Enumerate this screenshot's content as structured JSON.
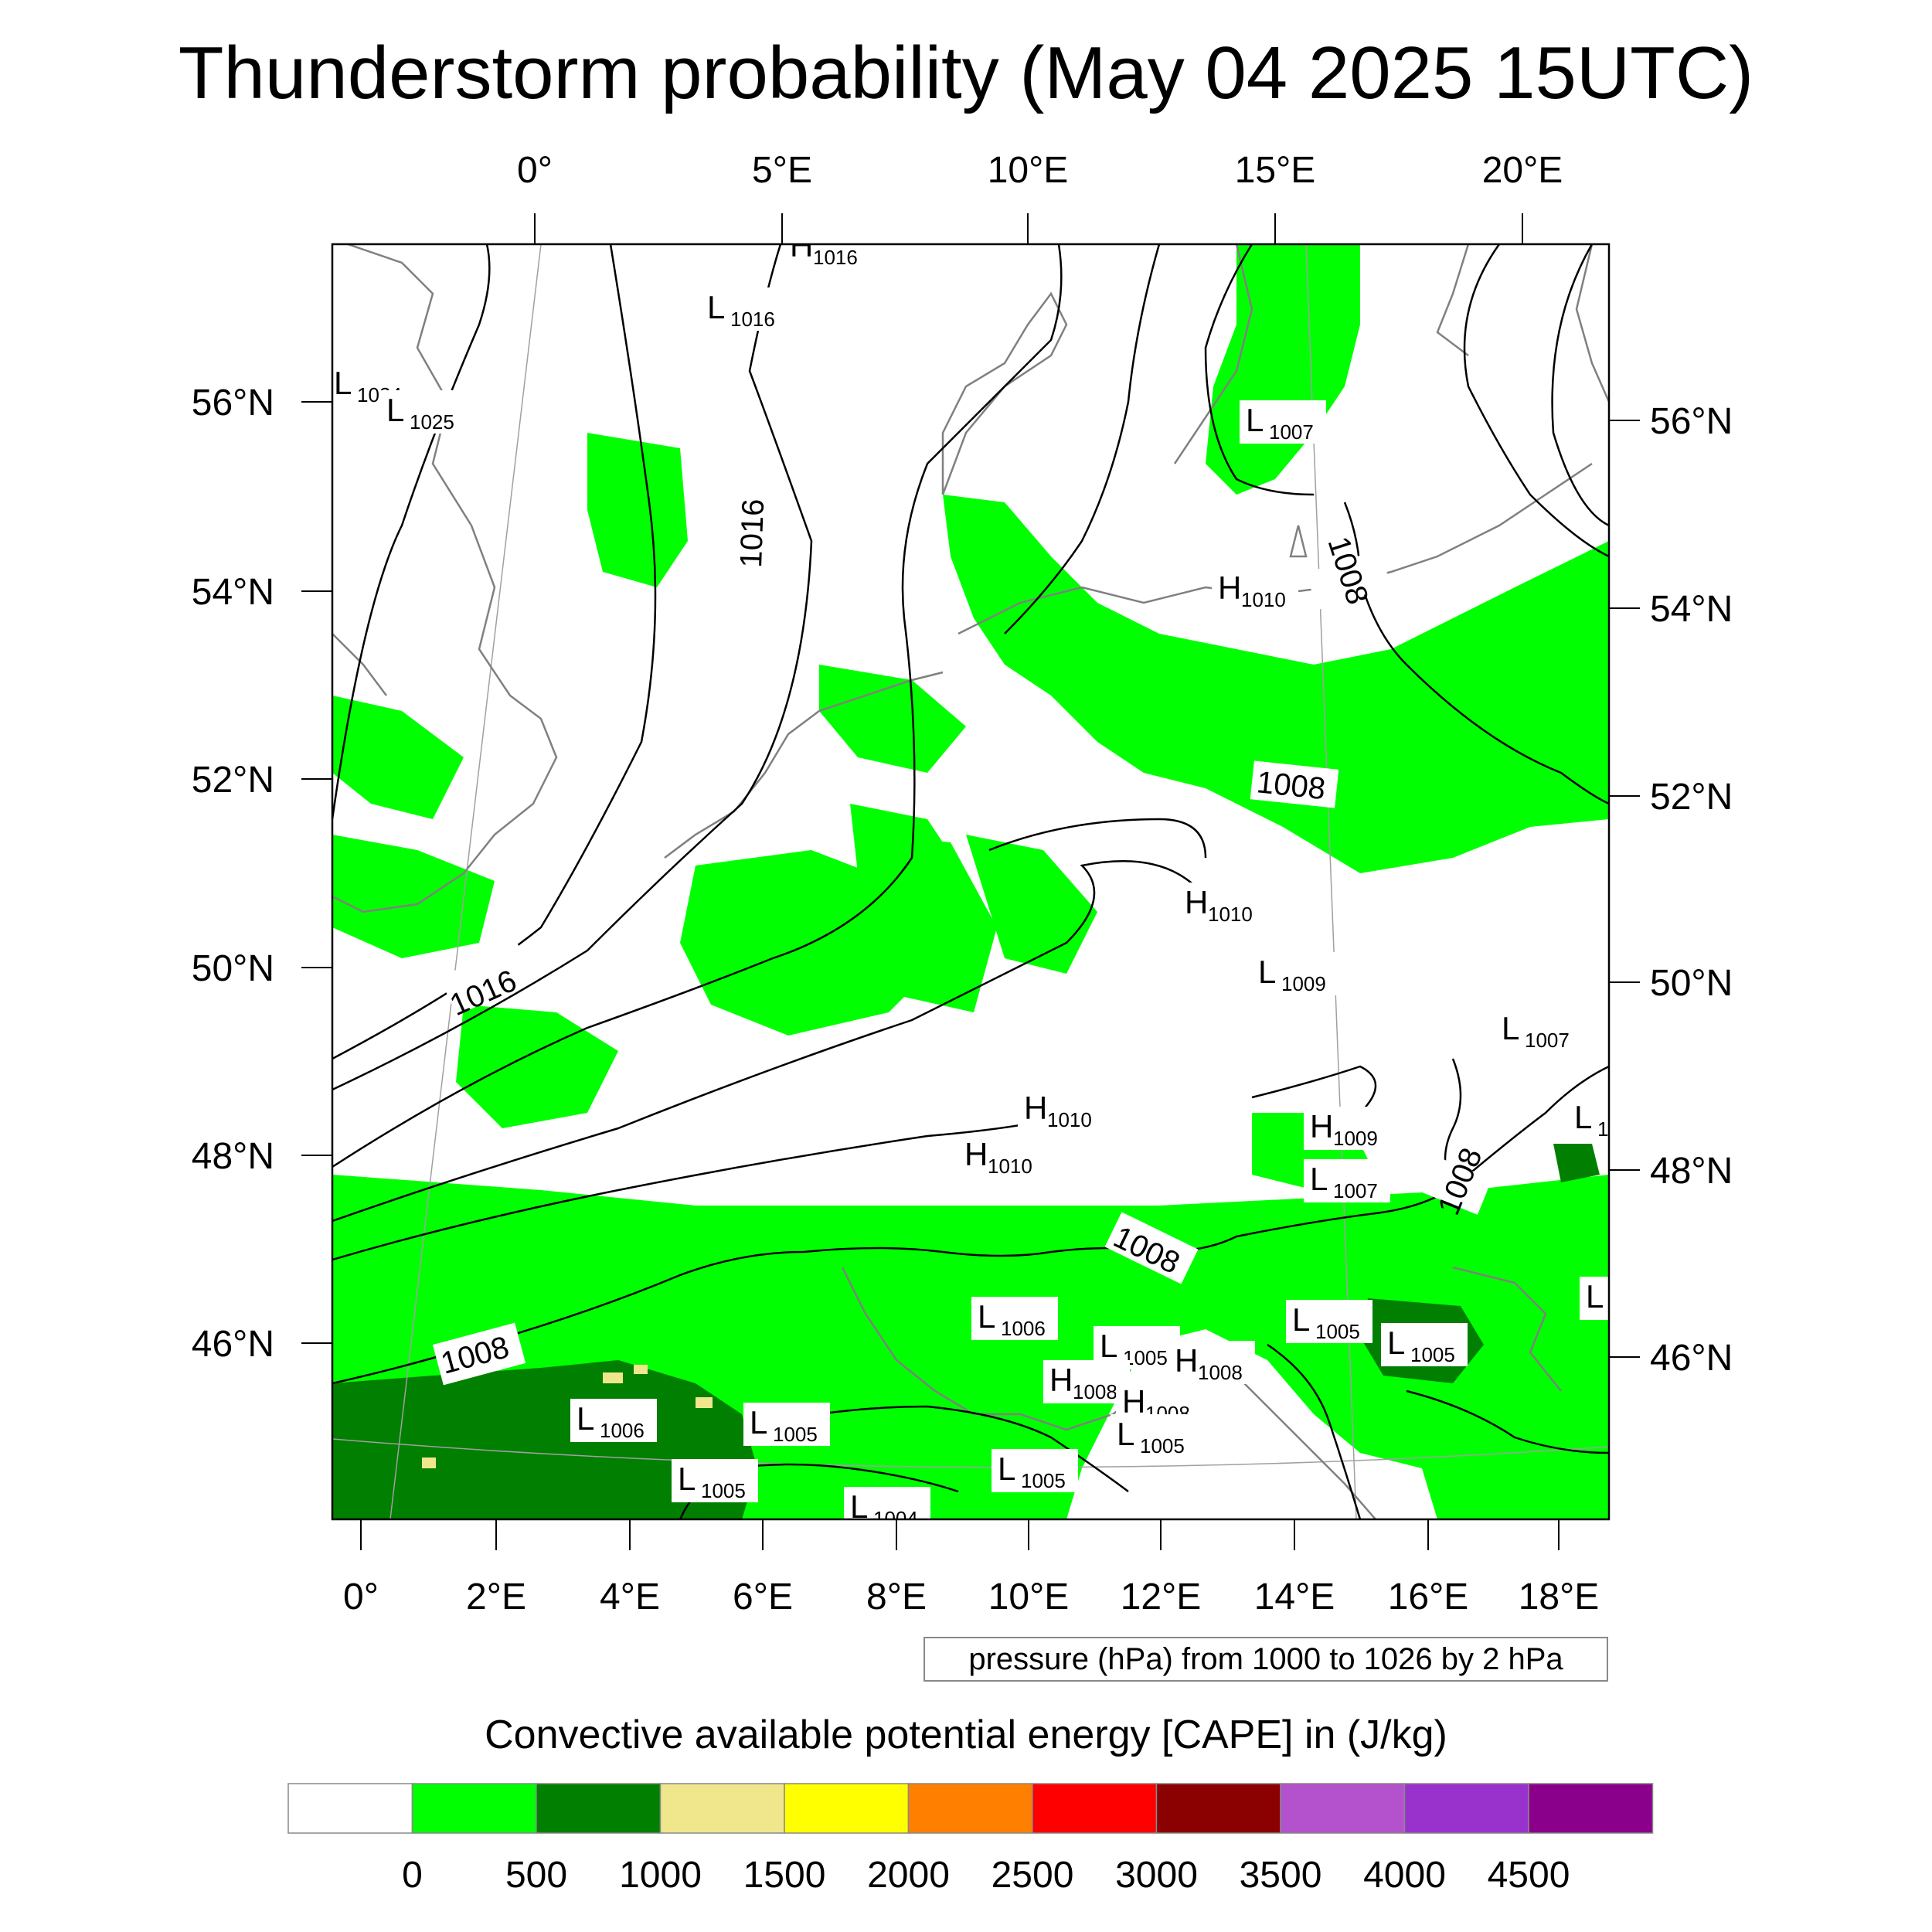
{
  "title": "Thunderstorm probability (May 04 2025 15UTC)",
  "axes": {
    "top_lon_labels": [
      "0°",
      "5°E",
      "10°E",
      "15°E",
      "20°E"
    ],
    "bottom_lon_labels": [
      "0°",
      "2°E",
      "4°E",
      "6°E",
      "8°E",
      "10°E",
      "12°E",
      "14°E",
      "16°E",
      "18°E"
    ],
    "left_lat_labels": [
      "56°N",
      "54°N",
      "52°N",
      "50°N",
      "48°N",
      "46°N"
    ],
    "right_lat_labels": [
      "56°N",
      "54°N",
      "52°N",
      "50°N",
      "48°N",
      "46°N"
    ]
  },
  "isobar_labels": [
    "1016",
    "1016",
    "1008",
    "1008",
    "1008",
    "1008",
    "1008"
  ],
  "pressure_centers": [
    {
      "type": "H",
      "value": "1016"
    },
    {
      "type": "L",
      "value": "1016"
    },
    {
      "type": "L",
      "value": "1024"
    },
    {
      "type": "L",
      "value": "1025"
    },
    {
      "type": "L",
      "value": "1007"
    },
    {
      "type": "H",
      "value": "1010"
    },
    {
      "type": "H",
      "value": "1010"
    },
    {
      "type": "L",
      "value": "1009"
    },
    {
      "type": "L",
      "value": "1007"
    },
    {
      "type": "H",
      "value": "1010"
    },
    {
      "type": "H",
      "value": "1010"
    },
    {
      "type": "H",
      "value": "1009"
    },
    {
      "type": "L",
      "value": "1007"
    },
    {
      "type": "L",
      "value": "1"
    },
    {
      "type": "L",
      "value": "1006"
    },
    {
      "type": "L",
      "value": "1005"
    },
    {
      "type": "H",
      "value": "1008"
    },
    {
      "type": "H",
      "value": "1008"
    },
    {
      "type": "H",
      "value": "1008"
    },
    {
      "type": "L",
      "value": "1005"
    },
    {
      "type": "L",
      "value": "1005"
    },
    {
      "type": "L",
      "value": "1005"
    },
    {
      "type": "L",
      "value": "1006"
    },
    {
      "type": "L",
      "value": "1005"
    },
    {
      "type": "L",
      "value": "1005"
    },
    {
      "type": "L",
      "value": "1005"
    },
    {
      "type": "L",
      "value": "1004"
    },
    {
      "type": "L",
      "value": ""
    }
  ],
  "pressure_note": "pressure (hPa) from 1000 to 1026 by 2 hPa",
  "colorbar": {
    "title": "Convective available potential energy [CAPE] in (J/kg)",
    "colors": [
      "#ffffff",
      "#00ff00",
      "#007f00",
      "#f0e68c",
      "#ffff00",
      "#ff8000",
      "#ff0000",
      "#8b0000",
      "#b452cd",
      "#9932cc",
      "#8b008b"
    ],
    "labels": [
      "0",
      "500",
      "1000",
      "1500",
      "2000",
      "2500",
      "3000",
      "3500",
      "4000",
      "4500"
    ]
  },
  "colors": {
    "cape_low": "#00ff00",
    "cape_mid": "#007f00",
    "cape_high": "#f0e68c",
    "isobar": "#000000",
    "coastline": "#808080",
    "grid": "#a0a0a0"
  }
}
